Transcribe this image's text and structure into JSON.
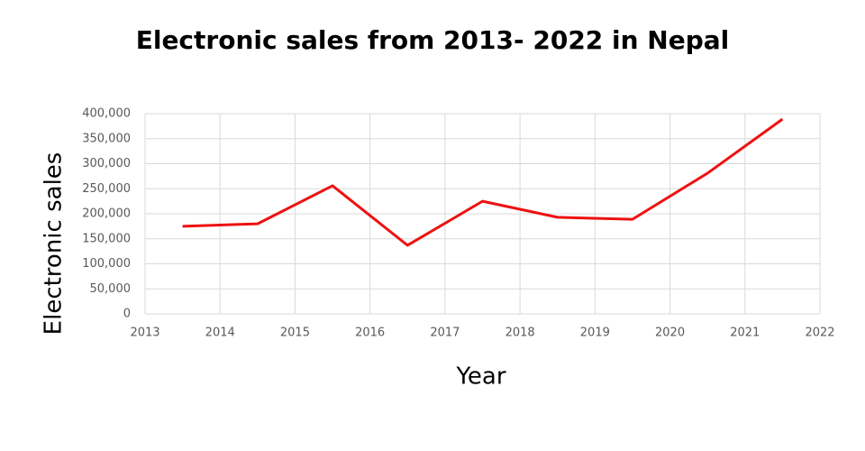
{
  "chart_data": {
    "type": "line",
    "title": "Electronic sales from 2013- 2022 in Nepal",
    "x_label": "Year",
    "y_label": "Electronic sales",
    "x": [
      2013.5,
      2014.5,
      2015.5,
      2016.5,
      2017.5,
      2018.5,
      2019.5,
      2020.5,
      2021.5
    ],
    "series": [
      {
        "name": "Electronic sales",
        "color": "#ee1111",
        "values": [
          175000,
          180000,
          256000,
          137000,
          225000,
          193000,
          189000,
          281000,
          389000
        ]
      }
    ],
    "xlim": [
      2013,
      2022
    ],
    "xticks": [
      2013,
      2014,
      2015,
      2016,
      2017,
      2018,
      2019,
      2020,
      2021,
      2022
    ],
    "ylim": [
      0,
      400000
    ],
    "yticks": [
      0,
      {
        "value": 50000,
        "label": "50,000"
      },
      {
        "value": 100000,
        "label": "100,000"
      },
      {
        "value": 150000,
        "label": "150,000"
      },
      {
        "value": 200000,
        "label": "200,000"
      },
      {
        "value": 250000,
        "label": "250,000"
      },
      {
        "value": 300000,
        "label": "300,000"
      },
      {
        "value": 350000,
        "label": "350,000"
      },
      {
        "value": 400000,
        "label": "400,000"
      }
    ],
    "grid": true,
    "legend": false
  }
}
